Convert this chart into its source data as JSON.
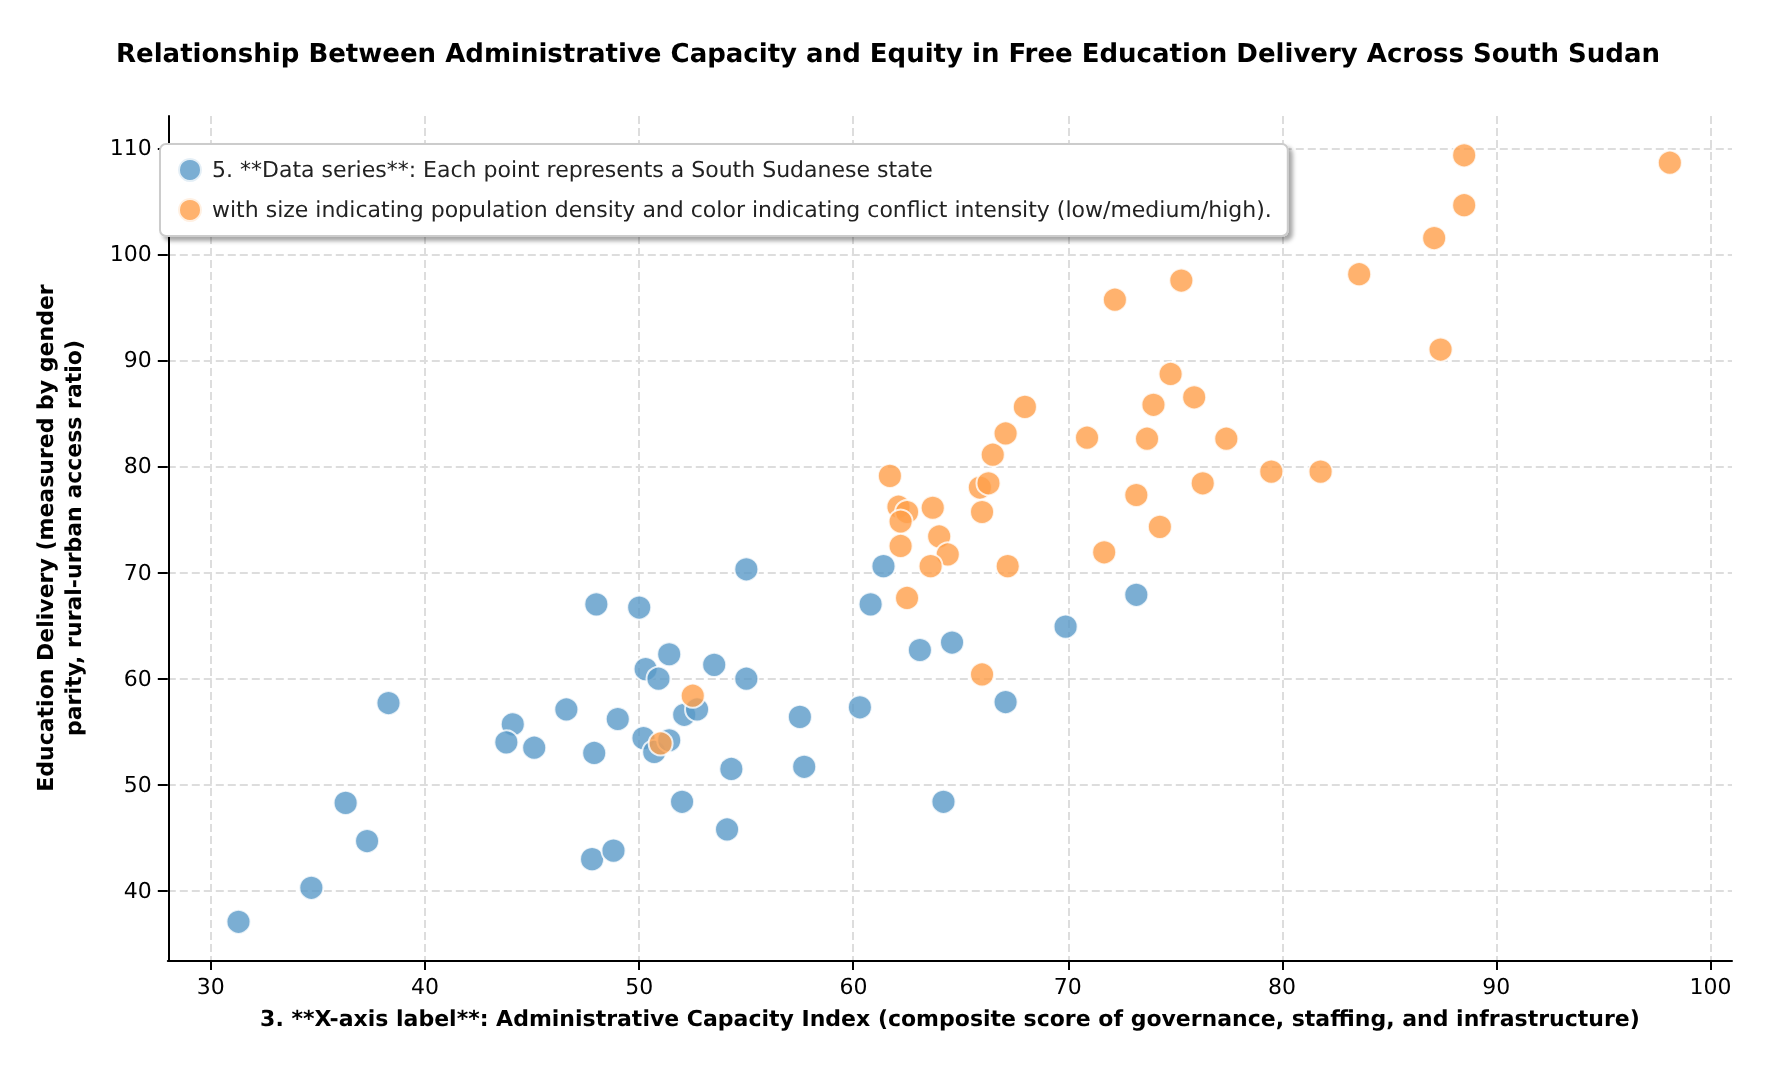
{
  "chart_data": {
    "type": "scatter",
    "title": "Relationship Between Administrative Capacity and Equity in Free Education Delivery Across South Sudan",
    "xlabel": "3. **X-axis label**: Administrative Capacity Index (composite score of governance, staffing, and infrastructure)",
    "ylabel": "Education Delivery (measured by gender parity, rural-urban access ratio)",
    "xlim": [
      28,
      101
    ],
    "ylim": [
      33.5,
      113
    ],
    "xticks": [
      30,
      40,
      50,
      60,
      70,
      80,
      90,
      100
    ],
    "yticks": [
      40,
      50,
      60,
      70,
      80,
      90,
      100,
      110
    ],
    "grid": true,
    "legend": "top left",
    "marker": "circle",
    "series": [
      {
        "name": "5. **Data series**: Each point represents a South Sudanese state",
        "color": "#5a9ac8",
        "x": [
          31.3,
          34.7,
          36.3,
          37.3,
          38.3,
          44.1,
          45.1,
          46.6,
          48.0,
          50.0,
          50.3,
          50.9,
          51.4,
          53.5,
          43.8,
          47.9,
          49.0,
          50.2,
          50.7,
          51.4,
          52.1,
          52.7,
          52.0,
          47.8,
          48.8,
          54.3,
          54.1,
          55.0,
          55.0,
          57.5,
          57.7,
          60.3,
          60.8,
          61.4,
          63.1,
          64.6,
          64.2,
          67.1,
          69.9,
          73.2
        ],
        "values": [
          37.1,
          40.3,
          48.3,
          44.7,
          57.7,
          55.7,
          53.5,
          57.1,
          67.0,
          66.7,
          60.9,
          60.0,
          62.3,
          61.3,
          54.0,
          53.0,
          56.2,
          54.4,
          53.1,
          54.2,
          56.6,
          57.1,
          48.4,
          43.0,
          43.8,
          51.5,
          45.8,
          70.3,
          60.0,
          56.4,
          51.7,
          57.3,
          67.0,
          70.6,
          62.7,
          63.4,
          48.4,
          57.8,
          64.9,
          67.9
        ]
      },
      {
        "name": "with size indicating population density and color indicating conflict intensity (low/medium/high).",
        "color": "#ff9f4a",
        "x": [
          52.5,
          51.0,
          66.0,
          62.5,
          67.2,
          71.7,
          61.7,
          62.1,
          62.5,
          62.2,
          62.2,
          63.7,
          64.0,
          64.4,
          63.6,
          65.9,
          66.3,
          66.0,
          66.5,
          67.1,
          68.0,
          70.9,
          74.8,
          74.0,
          75.9,
          73.7,
          77.4,
          73.2,
          76.3,
          74.3,
          79.5,
          81.8,
          88.5,
          98.1,
          88.5,
          87.1,
          83.6,
          87.4,
          75.3,
          72.2
        ],
        "values": [
          58.4,
          53.9,
          60.4,
          67.6,
          70.6,
          71.9,
          79.1,
          76.2,
          75.7,
          74.8,
          72.5,
          76.1,
          73.4,
          71.7,
          70.6,
          78.0,
          78.4,
          75.7,
          81.1,
          83.1,
          85.6,
          82.7,
          88.7,
          85.8,
          86.5,
          82.6,
          82.6,
          77.3,
          78.4,
          74.3,
          79.5,
          79.5,
          109.3,
          108.6,
          104.6,
          101.5,
          98.1,
          91.0,
          97.5,
          95.7
        ]
      }
    ]
  }
}
